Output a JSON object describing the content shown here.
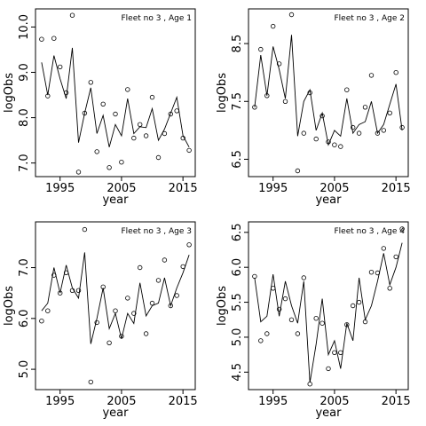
{
  "chart_data": [
    {
      "type": "line",
      "title": "Fleet no 3 , Age 1",
      "xlabel": "year",
      "ylabel": "logObs",
      "xlim": [
        1991,
        2017
      ],
      "ylim": [
        6.7,
        10.4
      ],
      "xticks": [
        1995,
        2005,
        2015
      ],
      "yticks": [
        7.0,
        8.0,
        9.0,
        10.0
      ],
      "ytick_labels": [
        "7.0",
        "8.0",
        "9.0",
        "10.0"
      ],
      "x": [
        1992,
        1993,
        1994,
        1995,
        1996,
        1997,
        1998,
        1999,
        2000,
        2001,
        2002,
        2003,
        2004,
        2005,
        2006,
        2007,
        2008,
        2009,
        2010,
        2011,
        2012,
        2013,
        2014,
        2015,
        2016
      ],
      "series": [
        {
          "kind": "line",
          "values": [
            9.22,
            8.5,
            9.37,
            8.86,
            8.42,
            9.54,
            7.45,
            8.1,
            8.66,
            7.65,
            8.05,
            7.35,
            7.85,
            7.6,
            8.42,
            7.65,
            7.8,
            7.78,
            8.2,
            7.5,
            7.75,
            8.1,
            8.45,
            7.6,
            7.35
          ]
        },
        {
          "kind": "points",
          "values": [
            9.73,
            8.48,
            9.75,
            9.12,
            8.55,
            10.26,
            6.8,
            8.1,
            8.78,
            7.25,
            8.3,
            6.9,
            8.08,
            7.02,
            8.62,
            7.55,
            7.85,
            7.6,
            8.45,
            7.12,
            7.65,
            8.08,
            8.15,
            7.55,
            7.28
          ]
        }
      ]
    },
    {
      "type": "line",
      "title": "Fleet no 3 , Age 2",
      "xlabel": "year",
      "ylabel": "logObs",
      "xlim": [
        1991,
        2017
      ],
      "ylim": [
        6.2,
        9.1
      ],
      "xticks": [
        1995,
        2005,
        2015
      ],
      "yticks": [
        6.5,
        7.5,
        8.5
      ],
      "ytick_labels": [
        "6.5",
        "7.5",
        "8.5"
      ],
      "x": [
        1992,
        1993,
        1994,
        1995,
        1996,
        1997,
        1998,
        1999,
        2000,
        2001,
        2002,
        2003,
        2004,
        2005,
        2006,
        2007,
        2008,
        2009,
        2010,
        2011,
        2012,
        2013,
        2014,
        2015,
        2016
      ],
      "series": [
        {
          "kind": "line",
          "values": [
            7.4,
            8.3,
            7.6,
            8.45,
            8.05,
            7.55,
            8.65,
            6.9,
            7.5,
            7.7,
            7.0,
            7.3,
            6.75,
            7.0,
            6.9,
            7.55,
            6.95,
            7.1,
            7.15,
            7.5,
            6.95,
            7.1,
            7.45,
            7.8,
            7.0
          ]
        },
        {
          "kind": "points",
          "values": [
            7.4,
            8.4,
            7.6,
            8.8,
            8.15,
            7.5,
            9.0,
            6.3,
            6.95,
            7.65,
            6.85,
            7.25,
            6.8,
            6.75,
            6.72,
            7.7,
            7.05,
            6.95,
            7.4,
            7.95,
            6.95,
            7.0,
            7.3,
            8.0,
            7.05
          ]
        }
      ]
    },
    {
      "type": "line",
      "title": "Fleet no 3 , Age 3",
      "xlabel": "year",
      "ylabel": "logObs",
      "xlim": [
        1991,
        2017
      ],
      "ylim": [
        4.6,
        7.9
      ],
      "xticks": [
        1995,
        2005,
        2015
      ],
      "yticks": [
        5.0,
        6.0,
        7.0
      ],
      "ytick_labels": [
        "5.0",
        "6.0",
        "7.0"
      ],
      "x": [
        1992,
        1993,
        1994,
        1995,
        1996,
        1997,
        1998,
        1999,
        2000,
        2001,
        2002,
        2003,
        2004,
        2005,
        2006,
        2007,
        2008,
        2009,
        2010,
        2011,
        2012,
        2013,
        2014,
        2015,
        2016
      ],
      "series": [
        {
          "kind": "line",
          "values": [
            6.15,
            6.3,
            7.0,
            6.5,
            7.05,
            6.6,
            6.4,
            7.3,
            5.5,
            6.0,
            6.6,
            5.8,
            6.1,
            5.6,
            6.1,
            5.9,
            6.7,
            6.05,
            6.25,
            6.3,
            6.8,
            6.25,
            6.6,
            6.9,
            7.25
          ]
        },
        {
          "kind": "points",
          "values": [
            5.95,
            6.15,
            6.85,
            6.5,
            6.9,
            6.55,
            6.55,
            7.75,
            4.75,
            5.92,
            6.62,
            5.52,
            6.15,
            5.65,
            6.4,
            6.1,
            7.0,
            5.7,
            6.3,
            6.75,
            7.15,
            6.25,
            6.45,
            7.02,
            7.45
          ]
        }
      ]
    },
    {
      "type": "line",
      "title": "Fleet no 3 , Age 4",
      "xlabel": "year",
      "ylabel": "logObs",
      "xlim": [
        1991,
        2017
      ],
      "ylim": [
        4.25,
        6.65
      ],
      "xticks": [
        1995,
        2005,
        2015
      ],
      "yticks": [
        4.5,
        5.0,
        5.5,
        6.0,
        6.5
      ],
      "ytick_labels": [
        "4.5",
        "5.0",
        "5.5",
        "6.0",
        "6.5"
      ],
      "x": [
        1992,
        1993,
        1994,
        1995,
        1996,
        1997,
        1998,
        1999,
        2000,
        2001,
        2002,
        2003,
        2004,
        2005,
        2006,
        2007,
        2008,
        2009,
        2010,
        2011,
        2012,
        2013,
        2014,
        2015,
        2016
      ],
      "series": [
        {
          "kind": "line",
          "values": [
            5.85,
            5.22,
            5.3,
            5.9,
            5.3,
            5.8,
            5.45,
            5.2,
            5.8,
            4.35,
            4.9,
            5.55,
            4.75,
            4.95,
            4.55,
            5.2,
            4.95,
            5.85,
            5.25,
            5.45,
            5.8,
            6.2,
            5.75,
            6.0,
            6.35
          ]
        },
        {
          "kind": "points",
          "values": [
            5.87,
            4.95,
            5.05,
            5.7,
            5.4,
            5.55,
            5.25,
            5.05,
            5.85,
            4.33,
            5.27,
            5.2,
            4.55,
            4.78,
            4.78,
            5.18,
            5.45,
            5.5,
            5.22,
            5.93,
            5.92,
            6.27,
            5.7,
            6.15,
            6.55
          ]
        }
      ]
    }
  ]
}
